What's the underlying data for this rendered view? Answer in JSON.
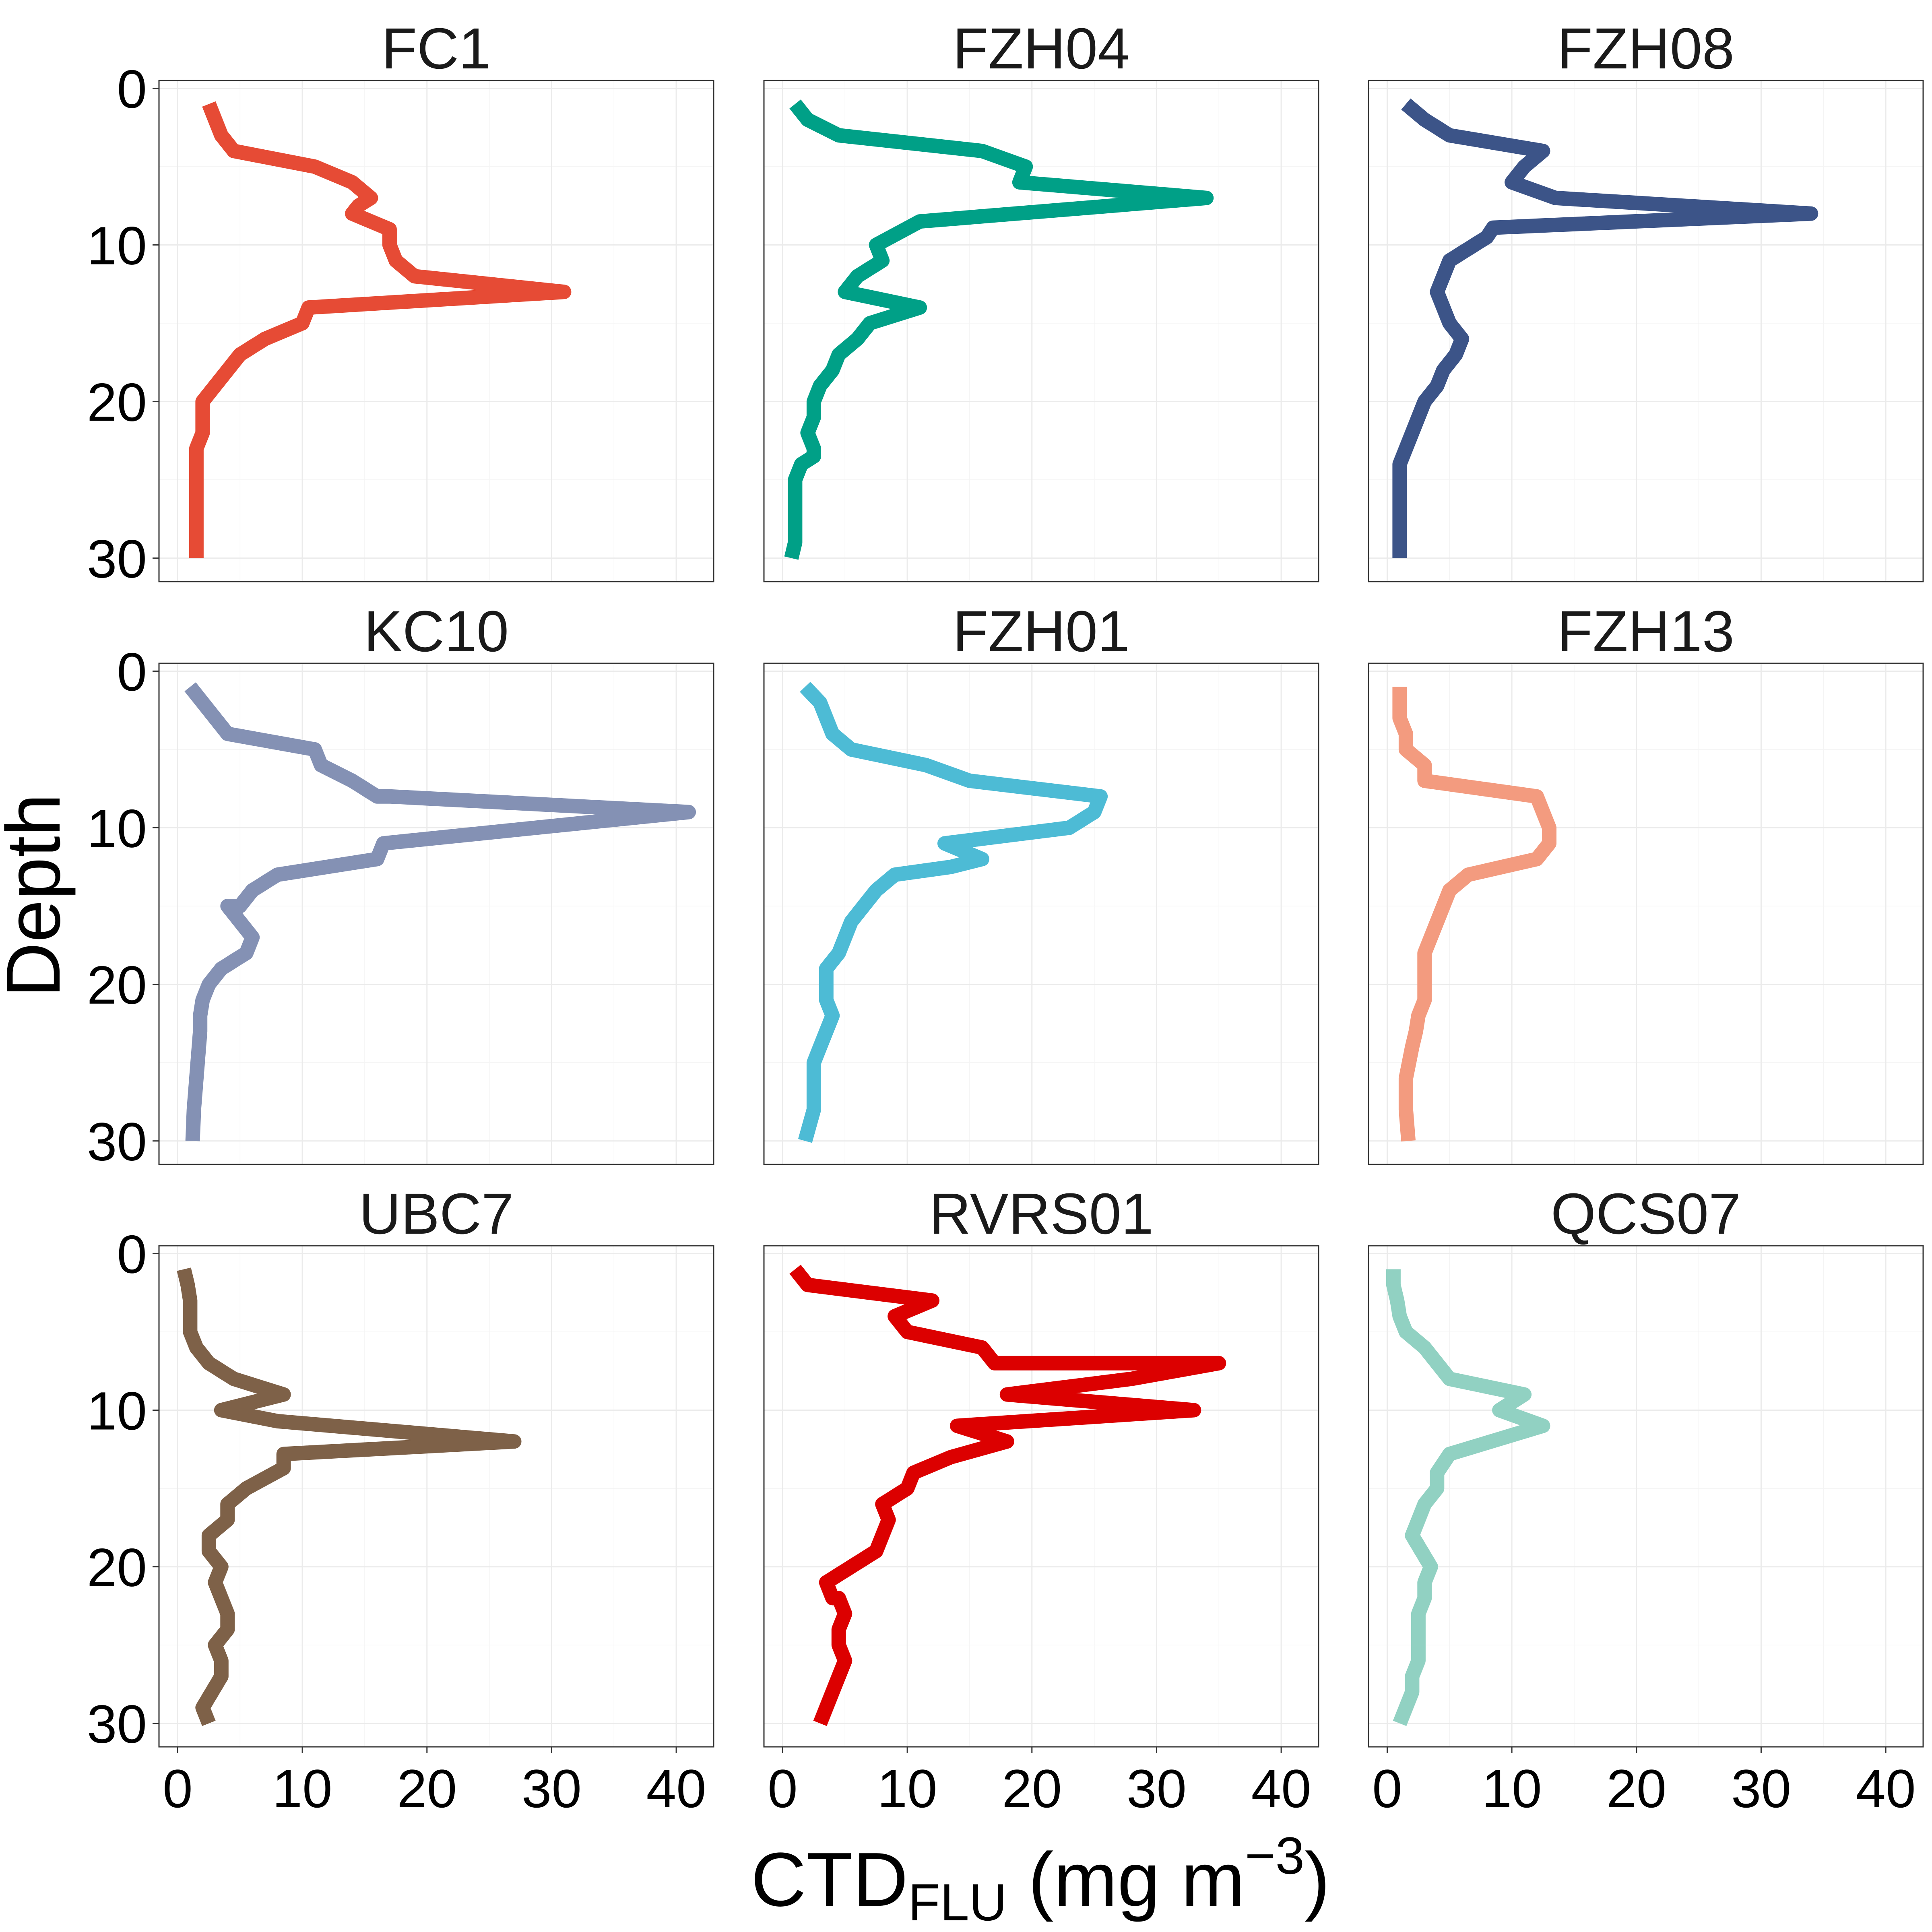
{
  "chart_data": {
    "type": "line",
    "layout": "facet-grid-3x3",
    "ylabel": "Depth",
    "xlabel": {
      "main": "CTD",
      "subscript": "FLU",
      "unit_prefix": " (mg m",
      "superscript": "−3",
      "unit_suffix": ")"
    },
    "xlim": [
      -1.5,
      43
    ],
    "ylim": [
      31.5,
      -0.5
    ],
    "x_ticks": [
      0,
      10,
      20,
      30,
      40
    ],
    "y_ticks": [
      0,
      10,
      20,
      30
    ],
    "grid": true,
    "panels": [
      {
        "name": "FC1",
        "color": "#E64B35",
        "x": [
          2.5,
          3,
          3.5,
          4.5,
          11,
          14,
          15.5,
          14.5,
          14,
          17,
          17,
          17.5,
          19,
          31,
          10.5,
          10,
          7,
          5,
          4,
          3,
          2,
          2,
          2,
          1.5,
          1.5,
          1.5,
          1.5,
          1.5,
          1.5,
          1.5
        ],
        "y": [
          1,
          2,
          3,
          4,
          5,
          6,
          7,
          7.5,
          8,
          9,
          10,
          11,
          12,
          13,
          14,
          15,
          16,
          17,
          18,
          19,
          20,
          21,
          22,
          23,
          24,
          25,
          26,
          27,
          28,
          30
        ]
      },
      {
        "name": "FZH04",
        "color": "#00A087",
        "x": [
          1,
          2,
          4.5,
          16,
          19.5,
          19,
          34,
          11,
          7.5,
          8,
          6,
          5,
          11,
          7,
          6,
          4.5,
          4,
          3,
          2.5,
          2.5,
          2,
          2.5,
          2.5,
          1.5,
          1,
          1,
          1,
          1,
          1,
          0.7
        ],
        "y": [
          1,
          2,
          3,
          4,
          5,
          6,
          7,
          8.5,
          10,
          11,
          12,
          13,
          14,
          15,
          16,
          17,
          18,
          19,
          20,
          21,
          22,
          23,
          23.5,
          24,
          25,
          26,
          27,
          28,
          29,
          30
        ]
      },
      {
        "name": "FZH08",
        "color": "#3C5488",
        "x": [
          1.5,
          3,
          5,
          12.5,
          11,
          10,
          13.5,
          34,
          8.5,
          8,
          5,
          4.5,
          4,
          4.5,
          5,
          6,
          5.5,
          4.5,
          4,
          3,
          2.5,
          2,
          1.5,
          1,
          1,
          1,
          1,
          1,
          1,
          1
        ],
        "y": [
          1,
          2,
          3,
          4,
          5,
          6,
          7,
          8,
          8.9,
          9.5,
          11,
          12,
          13,
          14,
          15,
          16,
          17,
          18,
          19,
          20,
          21,
          22,
          23,
          24,
          25,
          26,
          27,
          28,
          29,
          30
        ]
      },
      {
        "name": "KC10",
        "color": "#8491B4",
        "x": [
          1,
          2,
          3,
          4,
          11,
          11.5,
          14,
          16,
          17,
          41,
          16.5,
          16,
          8,
          6,
          5,
          4,
          5,
          6,
          5.5,
          3.5,
          2.5,
          2,
          1.8,
          1.8,
          1.7,
          1.6,
          1.5,
          1.4,
          1.3,
          1.2
        ],
        "y": [
          1,
          2,
          3,
          4,
          5,
          6,
          7,
          8,
          8,
          9,
          11,
          12,
          13,
          14,
          15,
          15,
          16,
          17,
          18,
          19,
          20,
          21,
          22,
          23,
          24,
          25,
          26,
          27,
          28,
          30
        ]
      },
      {
        "name": "FZH01",
        "color": "#4DBBD5",
        "x": [
          1.8,
          3,
          3.5,
          4,
          5.5,
          11.5,
          15,
          25.5,
          25,
          23,
          13,
          16,
          13.5,
          9,
          7.5,
          6.5,
          5.5,
          5,
          4.5,
          3.5,
          3.5,
          3.5,
          4,
          3.5,
          3,
          2.5,
          2.5,
          2.5,
          2.5,
          1.8
        ],
        "y": [
          1,
          2,
          3,
          4,
          5,
          6,
          7,
          8,
          9,
          10,
          11,
          12,
          12.5,
          13,
          14,
          15,
          16,
          17,
          18,
          19,
          20,
          21,
          22,
          23,
          24,
          25,
          26,
          27,
          28,
          30
        ]
      },
      {
        "name": "FZH13",
        "color": "#F39B7F",
        "x": [
          1,
          1,
          1,
          1.5,
          1.5,
          3,
          3,
          12,
          13,
          13,
          12,
          6.5,
          5,
          4.5,
          4,
          3.5,
          3,
          3,
          3,
          3,
          2.5,
          2.3,
          2,
          1.5,
          1.5,
          1.5,
          1.7
        ],
        "y": [
          1,
          2,
          3,
          4,
          5,
          6,
          7,
          8,
          10,
          11,
          12,
          13,
          14,
          15,
          16,
          17,
          18,
          19,
          20,
          21,
          22,
          23,
          24,
          26,
          27,
          28,
          30
        ]
      },
      {
        "name": "UBC7",
        "color": "#7E6148",
        "x": [
          0.5,
          0.8,
          1,
          1,
          1,
          1.5,
          2.5,
          4.5,
          8.5,
          3.5,
          8,
          27,
          8.5,
          8.5,
          5.5,
          4,
          4,
          2.5,
          2.5,
          3.5,
          3,
          3.5,
          4,
          4,
          3,
          3.5,
          3.5,
          2,
          2.5
        ],
        "y": [
          1,
          2,
          3,
          4,
          5,
          6,
          7,
          8,
          9,
          10,
          10.7,
          12,
          12.8,
          13.7,
          15,
          16,
          17,
          18,
          19,
          20,
          21,
          22,
          23,
          24,
          25,
          26,
          27,
          29,
          30
        ]
      },
      {
        "name": "RVRS01",
        "color": "#DC0000",
        "x": [
          1,
          2,
          12,
          9,
          10,
          16,
          17,
          35,
          28,
          18,
          33,
          14,
          18,
          13.5,
          10.5,
          10,
          8,
          8.5,
          7.5,
          3.5,
          4,
          4.5,
          5,
          4.5,
          4.5,
          5,
          4.5,
          4,
          3.5,
          3
        ],
        "y": [
          1,
          2,
          3,
          4,
          5,
          6,
          7,
          7,
          8,
          9,
          10,
          11,
          12,
          13,
          14,
          15,
          16,
          17,
          19,
          21,
          22,
          22,
          23,
          24,
          25,
          26,
          27,
          28,
          29,
          30
        ]
      },
      {
        "name": "QCS07",
        "color": "#91D1C2",
        "x": [
          0.5,
          0.5,
          0.8,
          1,
          1.5,
          3,
          4,
          5,
          11,
          9,
          12.5,
          5,
          4,
          4,
          3,
          2.5,
          2,
          3.5,
          3,
          3,
          2.5,
          2.5,
          2.5,
          2.5,
          2,
          2,
          1.5,
          1
        ],
        "y": [
          1,
          2,
          3,
          4,
          5,
          6,
          7,
          8,
          9,
          10,
          11,
          12.8,
          14,
          15,
          16,
          17,
          18,
          20,
          21,
          22,
          23,
          24,
          25,
          26,
          27,
          28,
          29,
          30
        ]
      }
    ]
  }
}
